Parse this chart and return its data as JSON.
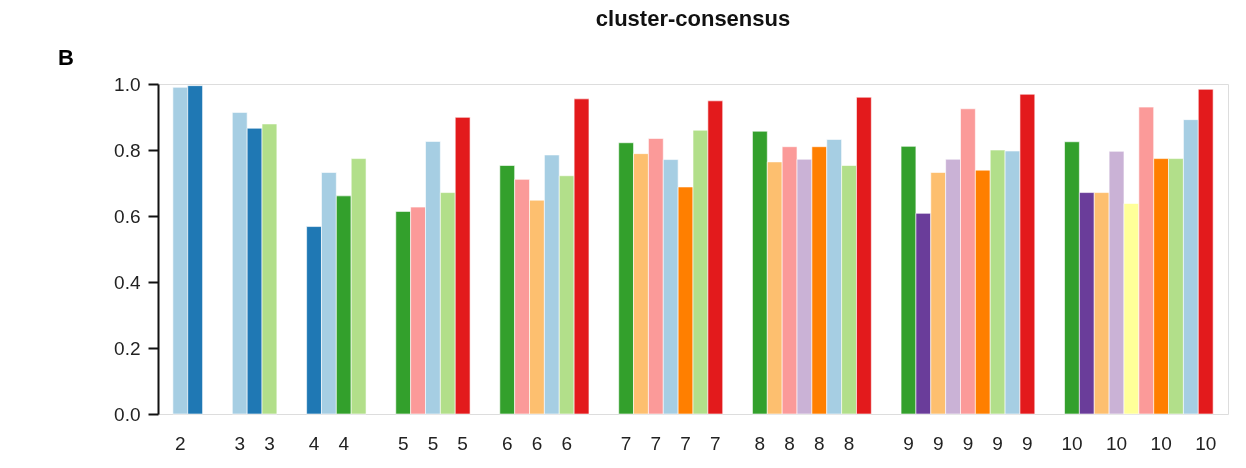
{
  "chart_data": {
    "type": "bar",
    "title": "cluster-consensus",
    "annotations": [
      "B"
    ],
    "categories": [
      "2",
      null,
      null,
      null,
      "3",
      null,
      "3",
      null,
      null,
      "4",
      null,
      "4",
      null,
      null,
      null,
      "5",
      null,
      "5",
      null,
      "5",
      null,
      null,
      "6",
      null,
      "6",
      null,
      "6",
      null,
      null,
      null,
      "7",
      null,
      "7",
      null,
      "7",
      null,
      "7",
      null,
      null,
      "8",
      null,
      "8",
      null,
      "8",
      null,
      "8",
      null,
      null,
      null,
      "9",
      null,
      "9",
      null,
      "9",
      null,
      "9",
      null,
      "9",
      null,
      null,
      "10",
      null,
      null,
      "10",
      null,
      null,
      "10",
      null,
      null,
      "10"
    ],
    "values": [
      0.99,
      0.995,
      null,
      null,
      0.914,
      0.866,
      0.879,
      null,
      null,
      0.568,
      0.732,
      0.661,
      0.774,
      null,
      null,
      0.614,
      0.627,
      0.826,
      0.671,
      0.899,
      null,
      null,
      0.753,
      0.711,
      0.648,
      0.785,
      0.722,
      0.955,
      null,
      null,
      0.822,
      0.789,
      0.835,
      0.771,
      0.688,
      0.86,
      0.949,
      null,
      null,
      0.857,
      0.764,
      0.81,
      0.772,
      0.81,
      0.832,
      0.753,
      0.96,
      null,
      null,
      0.811,
      0.608,
      0.732,
      0.772,
      0.925,
      0.739,
      0.8,
      0.797,
      0.969,
      null,
      null,
      0.825,
      0.671,
      0.671,
      0.796,
      0.638,
      0.93,
      0.774,
      0.774,
      0.892,
      0.984
    ],
    "colors": [
      "#a6cee3",
      "#1f78b4",
      null,
      null,
      "#a6cee3",
      "#1f78b4",
      "#b2df8a",
      null,
      null,
      "#1f78b4",
      "#a6cee3",
      "#33a02c",
      "#b2df8a",
      null,
      null,
      "#33a02c",
      "#fb9a99",
      "#a6cee3",
      "#b2df8a",
      "#e31a1c",
      null,
      null,
      "#33a02c",
      "#fb9a99",
      "#fdbf6f",
      "#a6cee3",
      "#b2df8a",
      "#e31a1c",
      null,
      null,
      "#33a02c",
      "#fdbf6f",
      "#fb9a99",
      "#a6cee3",
      "#ff7f00",
      "#b2df8a",
      "#e31a1c",
      null,
      null,
      "#33a02c",
      "#fdbf6f",
      "#fb9a99",
      "#cab2d6",
      "#ff7f00",
      "#a6cee3",
      "#b2df8a",
      "#e31a1c",
      null,
      null,
      "#33a02c",
      "#6a3d9a",
      "#fdbf6f",
      "#cab2d6",
      "#fb9a99",
      "#ff7f00",
      "#b2df8a",
      "#a6cee3",
      "#e31a1c",
      null,
      null,
      "#33a02c",
      "#6a3d9a",
      "#fdbf6f",
      "#cab2d6",
      "#ffff99",
      "#fb9a99",
      "#ff7f00",
      "#b2df8a",
      "#a6cee3",
      "#e31a1c"
    ],
    "ylim": [
      0,
      1
    ],
    "yticks": [
      {
        "value": 0,
        "label": "0.0"
      },
      {
        "value": 0.2,
        "label": "0.2"
      },
      {
        "value": 0.4,
        "label": "0.4"
      },
      {
        "value": 0.6,
        "label": "0.6"
      },
      {
        "value": 0.8,
        "label": "0.8"
      },
      {
        "value": 1,
        "label": "1.0"
      }
    ],
    "grid": false
  }
}
